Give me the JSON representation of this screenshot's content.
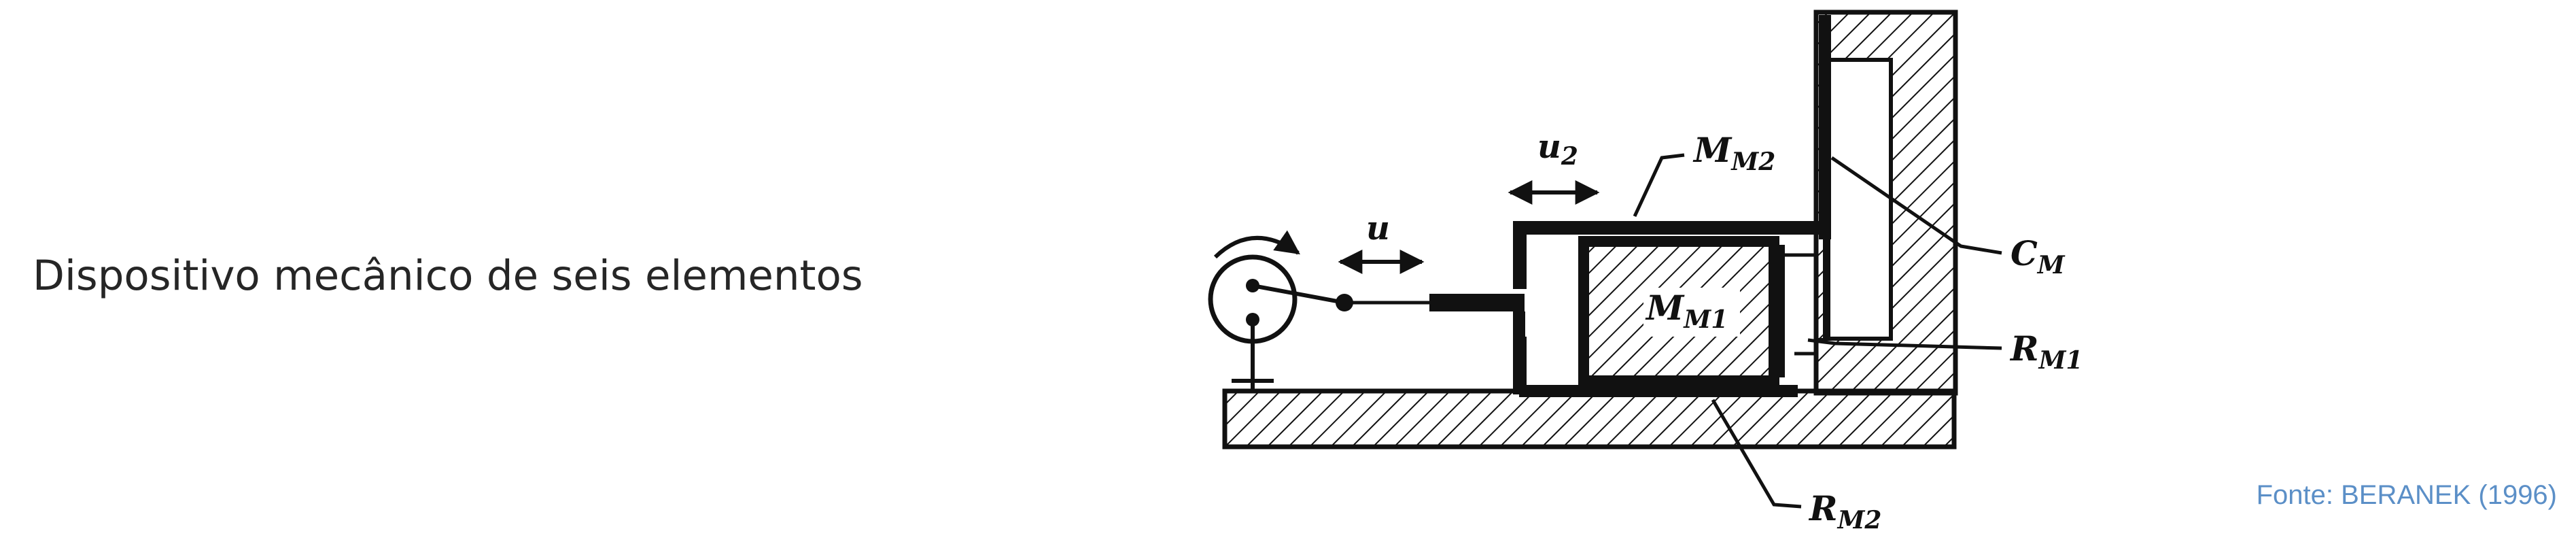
{
  "caption": "Dispositivo mecânico de seis elementos",
  "source": "Fonte: BERANEK (1996)",
  "diagram": {
    "labels": {
      "u": "u",
      "u2_main": "u",
      "u2_sub": "2",
      "mm2_main": "M",
      "mm2_sub": "M2",
      "mm1_main": "M",
      "mm1_sub": "M1",
      "cm_main": "C",
      "cm_sub": "M",
      "rm1_main": "R",
      "rm1_sub": "M1",
      "rm2_main": "R",
      "rm2_sub": "M2"
    },
    "colors": {
      "ink": "#111111",
      "caption": "#262626",
      "source": "#5b8fc7"
    }
  }
}
